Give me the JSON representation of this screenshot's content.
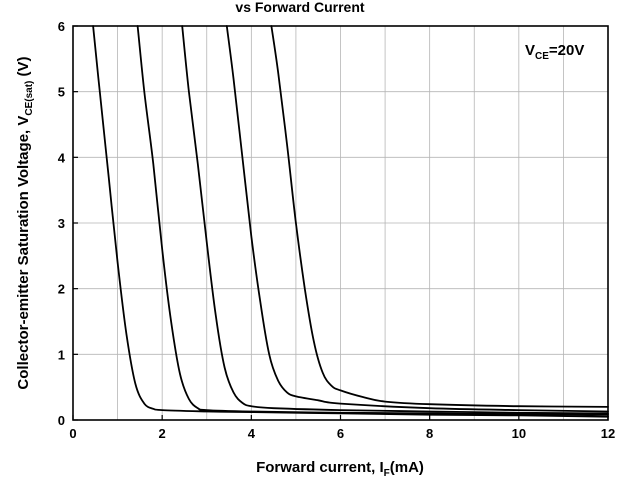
{
  "chart_data": {
    "type": "line",
    "title": "vs Forward Current",
    "xlabel": {
      "main": "Forward current, I",
      "sub": "F",
      "tail": "(mA)"
    },
    "ylabel": {
      "main": "Collector-emitter Saturation Voltage, V",
      "sub": "CE(sat)",
      "tail": " (V)"
    },
    "annotation": {
      "main": "V",
      "sub": "CE",
      "tail": "=20V"
    },
    "xlim": [
      0,
      12
    ],
    "ylim": [
      0,
      6
    ],
    "xticks": [
      "0",
      "2",
      "4",
      "6",
      "8",
      "10",
      "12"
    ],
    "yticks": [
      "0",
      "1",
      "2",
      "3",
      "4",
      "5",
      "6"
    ],
    "grid": true,
    "series": [
      {
        "x": [
          0.45,
          0.6,
          0.8,
          1.0,
          1.2,
          1.4,
          1.6,
          1.8,
          2.0,
          3.0,
          4.0,
          6.0,
          8.0,
          10.0,
          12.0
        ],
        "values": [
          6.0,
          5.0,
          3.7,
          2.4,
          1.3,
          0.55,
          0.25,
          0.17,
          0.15,
          0.13,
          0.12,
          0.1,
          0.08,
          0.07,
          0.05
        ]
      },
      {
        "x": [
          1.45,
          1.6,
          1.8,
          2.0,
          2.2,
          2.4,
          2.6,
          2.8,
          3.0,
          4.0,
          6.0,
          8.0,
          10.0,
          12.0
        ],
        "values": [
          6.0,
          5.0,
          3.9,
          2.6,
          1.5,
          0.7,
          0.32,
          0.18,
          0.15,
          0.13,
          0.11,
          0.1,
          0.09,
          0.08
        ]
      },
      {
        "x": [
          2.45,
          2.6,
          2.8,
          3.0,
          3.2,
          3.4,
          3.6,
          3.8,
          4.0,
          4.5,
          6.0,
          8.0,
          10.0,
          12.0
        ],
        "values": [
          6.0,
          5.0,
          3.9,
          2.7,
          1.6,
          0.8,
          0.42,
          0.26,
          0.21,
          0.18,
          0.15,
          0.13,
          0.11,
          0.1
        ]
      },
      {
        "x": [
          3.45,
          3.6,
          3.8,
          4.0,
          4.2,
          4.4,
          4.6,
          4.8,
          5.0,
          5.5,
          6.0,
          8.0,
          10.0,
          12.0
        ],
        "values": [
          6.0,
          5.2,
          4.0,
          2.8,
          1.8,
          1.0,
          0.6,
          0.42,
          0.36,
          0.3,
          0.25,
          0.18,
          0.15,
          0.13
        ]
      },
      {
        "x": [
          4.45,
          4.6,
          4.8,
          5.0,
          5.2,
          5.4,
          5.6,
          5.8,
          6.0,
          6.5,
          7.0,
          8.0,
          10.0,
          12.0
        ],
        "values": [
          6.0,
          5.3,
          4.2,
          3.0,
          2.0,
          1.2,
          0.72,
          0.52,
          0.45,
          0.35,
          0.28,
          0.24,
          0.21,
          0.2
        ]
      }
    ]
  }
}
